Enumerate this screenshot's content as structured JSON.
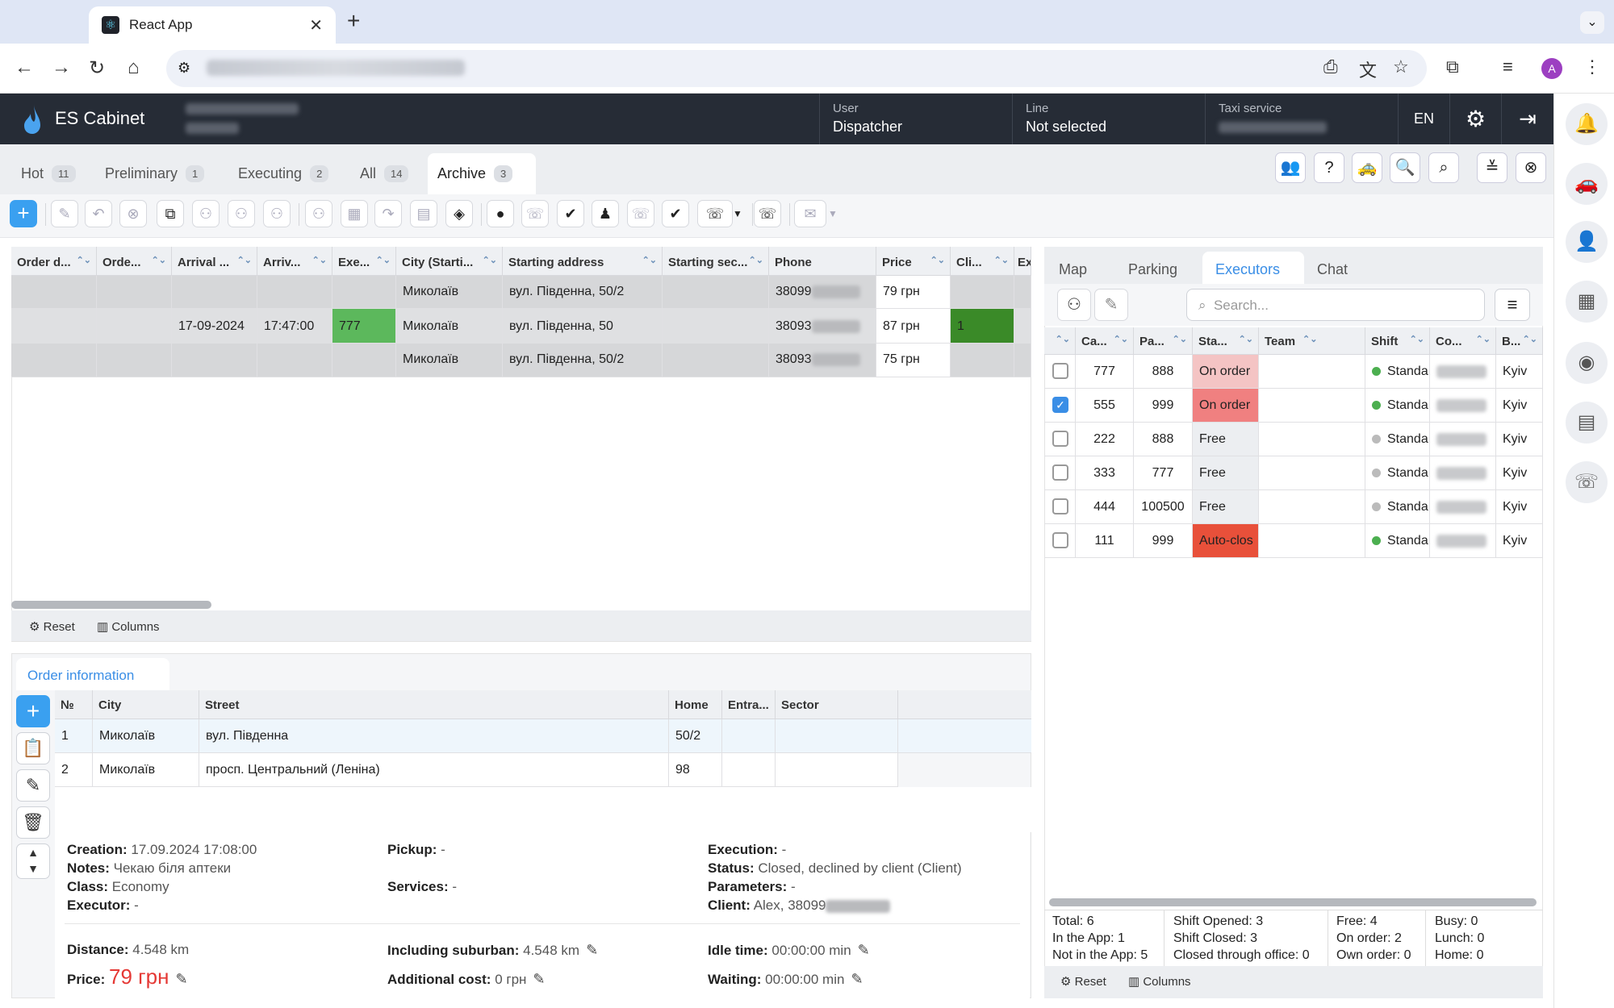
{
  "browser": {
    "tab_title": "React App",
    "tab_close": "✕",
    "new_tab": "+",
    "tab_menu": "⌄"
  },
  "header": {
    "brand": "ES Cabinet",
    "user_label": "User",
    "user_value": "Dispatcher",
    "line_label": "Line",
    "line_value": "Not selected",
    "taxi_label": "Taxi service",
    "lang": "EN"
  },
  "order_tabs": [
    {
      "label": "Hot",
      "count": "11"
    },
    {
      "label": "Preliminary",
      "count": "1"
    },
    {
      "label": "Executing",
      "count": "2"
    },
    {
      "label": "All",
      "count": "14"
    },
    {
      "label": "Archive",
      "count": "3"
    }
  ],
  "orders_table": {
    "columns": [
      "Order d...",
      "Orde...",
      "Arrival ...",
      "Arriv...",
      "Exe...",
      "City (Starti...",
      "Starting address",
      "Starting sec...",
      "Phone",
      "Price",
      "Cli...",
      "Ex"
    ],
    "rows": [
      {
        "arrival_date": "",
        "arrival_time": "",
        "executor": "",
        "city": "Миколаїв",
        "address": "вул. Південна, 50/2",
        "phone": "38099",
        "price": "79 грн",
        "client": ""
      },
      {
        "arrival_date": "17-09-2024",
        "arrival_time": "17:47:00",
        "executor": "777",
        "city": "Миколаїв",
        "address": "вул. Південна, 50",
        "phone": "38093",
        "price": "87 грн",
        "client": "1"
      },
      {
        "arrival_date": "",
        "arrival_time": "",
        "executor": "",
        "city": "Миколаїв",
        "address": "вул. Південна, 50/2",
        "phone": "38093",
        "price": "75 грн",
        "client": ""
      }
    ],
    "reset": "Reset",
    "columns_btn": "Columns"
  },
  "order_info": {
    "tab": "Order information",
    "columns": [
      "№",
      "City",
      "Street",
      "Home",
      "Entra...",
      "Sector"
    ],
    "rows": [
      {
        "n": "1",
        "city": "Миколаїв",
        "street": "вул. Південна",
        "home": "50/2"
      },
      {
        "n": "2",
        "city": "Миколаїв",
        "street": "просп. Центральний (Леніна)",
        "home": "98"
      }
    ],
    "creation_label": "Creation:",
    "creation": "17.09.2024 17:08:00",
    "notes_label": "Notes:",
    "notes": "Чекаю біля аптеки",
    "class_label": "Class:",
    "class": "Economy",
    "executor_label": "Executor:",
    "executor": "-",
    "pickup_label": "Pickup:",
    "pickup": "-",
    "services_label": "Services:",
    "services": "-",
    "execution_label": "Execution:",
    "execution": "-",
    "status_label": "Status:",
    "status": "Closed, declined by client (Client)",
    "parameters_label": "Parameters:",
    "parameters": "-",
    "client_label": "Client:",
    "client": "Alex, 38099",
    "distance_label": "Distance:",
    "distance": "4.548 km",
    "price_label": "Price:",
    "price": "79 грн",
    "suburban_label": "Including suburban:",
    "suburban": "4.548 km",
    "addcost_label": "Additional cost:",
    "addcost": "0 грн",
    "idle_label": "Idle time:",
    "idle": "00:00:00 min",
    "waiting_label": "Waiting:",
    "waiting": "00:00:00 min"
  },
  "right_tabs": [
    "Map",
    "Parking",
    "Executors",
    "Chat"
  ],
  "executors": {
    "search_placeholder": "Search...",
    "columns": [
      "Ca...",
      "Pa...",
      "Sta...",
      "Team",
      "Shift",
      "Co...",
      "B..."
    ],
    "rows": [
      {
        "car": "777",
        "pass": "888",
        "status": "On order",
        "status_color": "#f4c4c4",
        "shift": "Standa",
        "shift_color": "#4caf50",
        "city": "Kyiv",
        "checked": false
      },
      {
        "car": "555",
        "pass": "999",
        "status": "On order",
        "status_color": "#f08080",
        "shift": "Standa",
        "shift_color": "#4caf50",
        "city": "Kyiv",
        "checked": true
      },
      {
        "car": "222",
        "pass": "888",
        "status": "Free",
        "status_color": "#eceef1",
        "shift": "Standa",
        "shift_color": "#bbbbbb",
        "city": "Kyiv",
        "checked": false
      },
      {
        "car": "333",
        "pass": "777",
        "status": "Free",
        "status_color": "#eceef1",
        "shift": "Standa",
        "shift_color": "#bbbbbb",
        "city": "Kyiv",
        "checked": false
      },
      {
        "car": "444",
        "pass": "100500",
        "status": "Free",
        "status_color": "#eceef1",
        "shift": "Standa",
        "shift_color": "#bbbbbb",
        "city": "Kyiv",
        "checked": false
      },
      {
        "car": "111",
        "pass": "999",
        "status": "Auto-clos",
        "status_color": "#e8503a",
        "shift": "Standa",
        "shift_color": "#4caf50",
        "city": "Kyiv",
        "checked": false
      }
    ],
    "stats": {
      "total": "Total: 6",
      "in_app": "In the App: 1",
      "not_in_app": "Not in the App: 5",
      "shift_opened": "Shift Opened: 3",
      "shift_closed": "Shift Closed: 3",
      "closed_office": "Closed through office: 0",
      "free": "Free: 4",
      "on_order": "On order: 2",
      "own_order": "Own order: 0",
      "busy": "Busy: 0",
      "lunch": "Lunch: 0",
      "home": "Home: 0"
    },
    "reset": "Reset",
    "columns_btn": "Columns"
  }
}
